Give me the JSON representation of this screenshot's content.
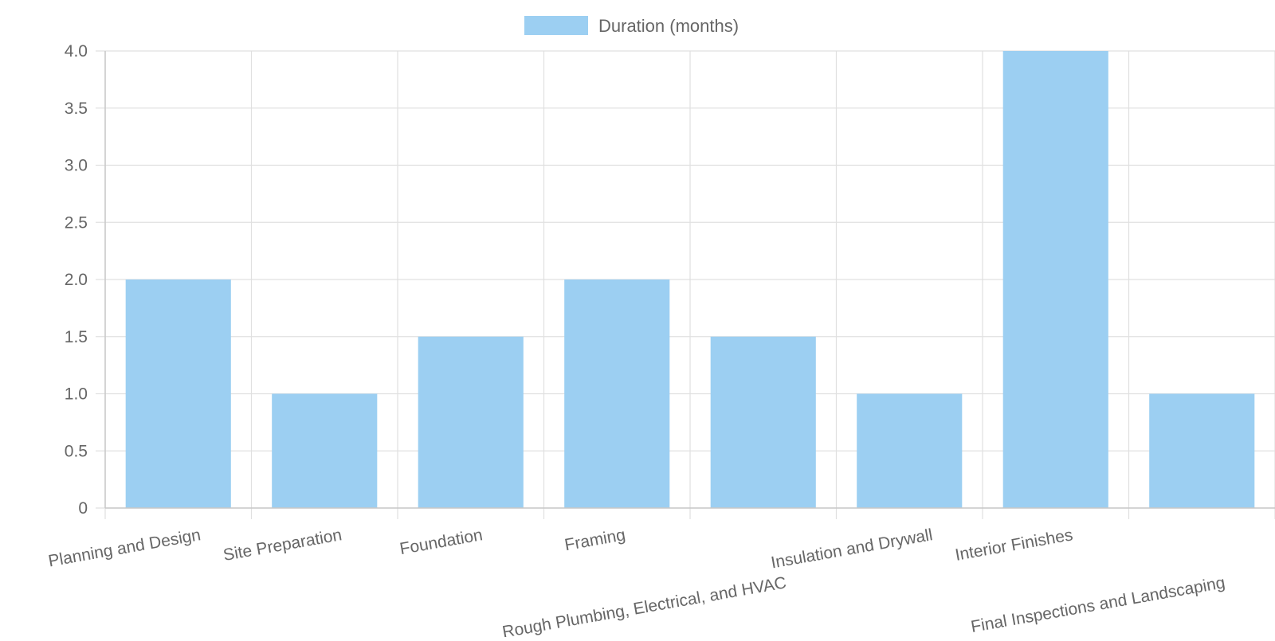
{
  "chart_data": {
    "type": "bar",
    "title": "",
    "xlabel": "",
    "ylabel": "",
    "categories": [
      "Planning and Design",
      "Site Preparation",
      "Foundation",
      "Framing",
      "Rough Plumbing, Electrical, and HVAC",
      "Insulation and Drywall",
      "Interior Finishes",
      "Final Inspections and Landscaping"
    ],
    "series": [
      {
        "name": "Duration (months)",
        "values": [
          2,
          1,
          1.5,
          2,
          1.5,
          1,
          4,
          1
        ],
        "color": "#9ccff2"
      }
    ],
    "ylim": [
      0,
      4
    ],
    "yticks": [
      "0",
      "0.5",
      "1.0",
      "1.5",
      "2.0",
      "2.5",
      "3.0",
      "3.5",
      "4.0"
    ],
    "grid": true,
    "legend_position": "top"
  },
  "colors": {
    "bar": "#9ccff2",
    "grid": "#e0e0e0",
    "axis": "#c8c8c8",
    "text": "#666666"
  }
}
